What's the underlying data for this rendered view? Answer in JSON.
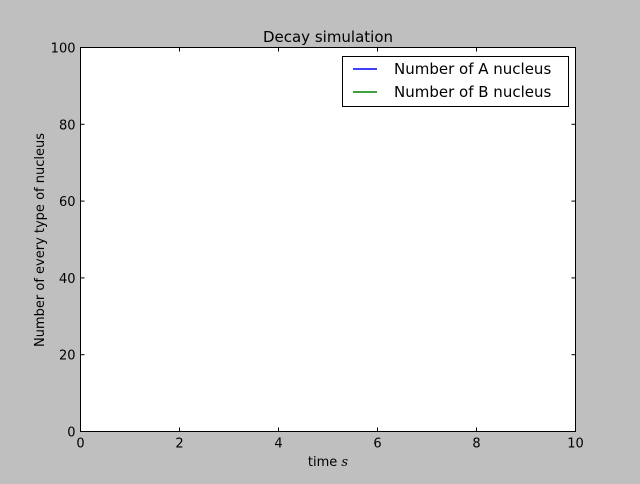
{
  "colors": {
    "figure_background": "#bfbfbf",
    "plot_background": "#ffffff",
    "series_a": "#0000ff",
    "series_b": "#008000"
  },
  "chart_data": {
    "type": "line",
    "title": "Decay simulation",
    "xlabel": "time",
    "xlabel_unit": "s",
    "ylabel": "Number of every type of nucleus",
    "xlim": [
      0,
      10
    ],
    "ylim": [
      0,
      100
    ],
    "xticks": [
      0,
      2,
      4,
      6,
      8,
      10
    ],
    "yticks": [
      0,
      20,
      40,
      60,
      80,
      100
    ],
    "grid": false,
    "legend_position": "top-right",
    "series": [
      {
        "name": "Number of A nucleus",
        "color": "#0000ff",
        "x": [],
        "y": []
      },
      {
        "name": "Number of B nucleus",
        "color": "#008000",
        "x": [],
        "y": []
      }
    ]
  }
}
